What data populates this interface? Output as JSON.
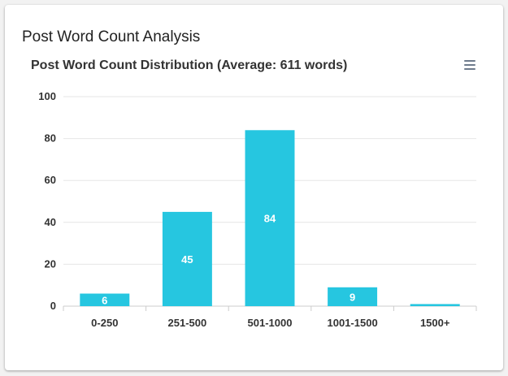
{
  "card": {
    "title": "Post Word Count Analysis"
  },
  "menu": {
    "icon": "hamburger-menu-icon"
  },
  "colors": {
    "bar": "#26c6e0",
    "grid": "#e6e6e6",
    "axis": "#cccccc"
  },
  "chart_data": {
    "type": "bar",
    "title": "Post Word Count Distribution (Average: 611 words)",
    "categories": [
      "0-250",
      "251-500",
      "501-1000",
      "1001-1500",
      "1500+"
    ],
    "values": [
      6,
      45,
      84,
      9,
      1
    ],
    "data_labels": [
      "6",
      "45",
      "84",
      "9",
      ""
    ],
    "ylim": [
      0,
      100
    ],
    "yticks": [
      0,
      20,
      40,
      60,
      80,
      100
    ],
    "grid": true,
    "legend": "none"
  }
}
